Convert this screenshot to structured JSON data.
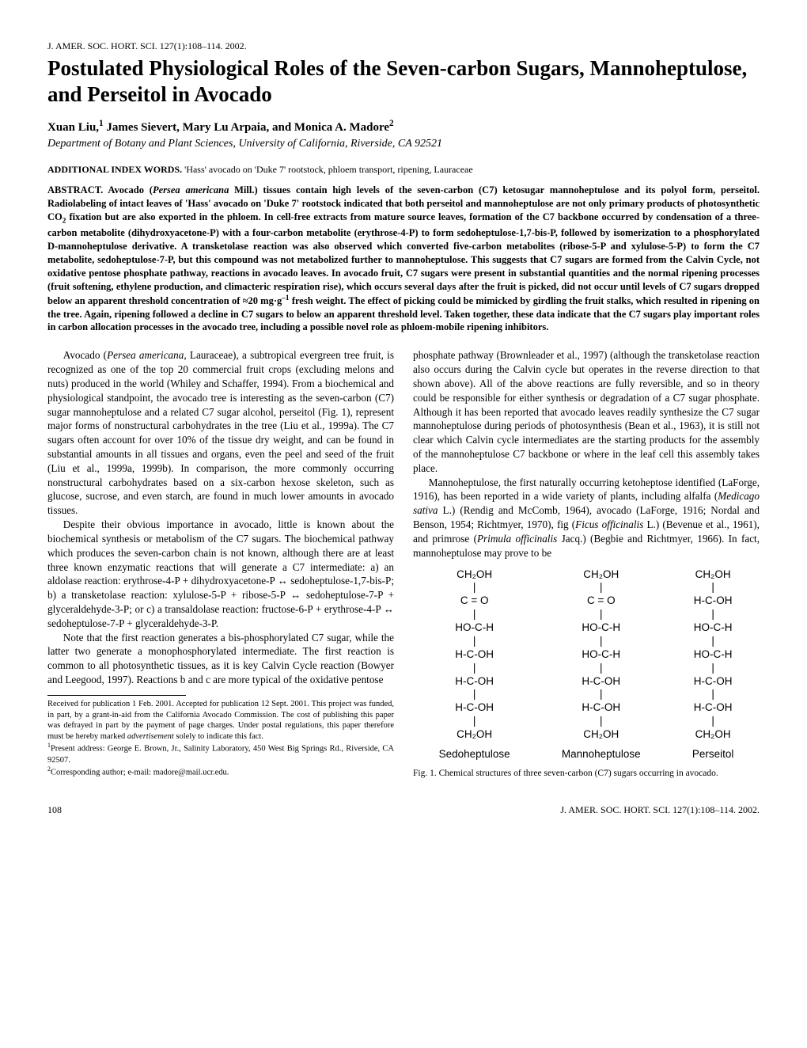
{
  "journal_line": "J. AMER. SOC. HORT. SCI. 127(1):108–114. 2002.",
  "title": "Postulated Physiological Roles of the Seven-carbon Sugars, Mannoheptulose, and Perseitol in Avocado",
  "authors_html": "Xuan Liu,<span class='sup'>1</span> James Sievert, Mary Lu Arpaia, and Monica A. Madore<span class='sup'>2</span>",
  "affiliation": "Department of Botany and Plant Sciences, University of California, Riverside, CA 92521",
  "index_words": {
    "label": "ADDITIONAL INDEX WORDS.",
    "text": " 'Hass' avocado on 'Duke 7' rootstock, phloem transport, ripening, Lauraceae"
  },
  "abstract_label": "ABSTRACT.",
  "abstract_html": " Avocado (<span class='italic'>Persea americana</span> Mill.) tissues contain high levels of the seven-carbon (C7) ketosugar mannoheptulose and its polyol form, perseitol. Radiolabeling of intact leaves of 'Hass' avocado on 'Duke 7' rootstock indicated that both perseitol and mannoheptulose are not only primary products of photosynthetic CO<span class='sub'>2</span> fixation but are also exported in the phloem. In cell-free extracts from mature source leaves, formation of the C7 backbone occurred by condensation of a three-carbon metabolite (dihydroxyacetone-P) with a four-carbon metabolite (erythrose-4-P) to form sedoheptulose-1,7-bis-P, followed by isomerization to a phosphorylated D-mannoheptulose derivative. A transketolase reaction was also observed which converted five-carbon metabolites (ribose-5-P and xylulose-5-P) to form the C7 metabolite, sedoheptulose-7-P, but this compound was not metabolized further to mannoheptulose. This suggests that C7 sugars are formed from the Calvin Cycle, not oxidative pentose phosphate pathway, reactions in avocado leaves. In avocado fruit, C7 sugars were present in substantial quantities and the normal ripening processes (fruit softening, ethylene production, and climacteric respiration rise), which occurs several days after the fruit is picked, did not occur until levels of C7 sugars dropped below an apparent threshold concentration of ≈20 mg·g<span class='sup'>–1</span> fresh weight. The effect of picking could be mimicked by girdling the fruit stalks, which resulted in ripening on the tree. Again, ripening followed a decline in C7 sugars to below an apparent threshold level. Taken together, these data indicate that the C7 sugars play important roles in carbon allocation processes in the avocado tree, including a possible novel role as phloem-mobile ripening inhibitors.",
  "left_col": [
    {
      "html": "Avocado (<span class='italic'>Persea americana,</span> Lauraceae), a subtropical evergreen tree fruit, is recognized as one of the top 20 commercial fruit crops (excluding melons and nuts) produced in the world (Whiley and Schaffer, 1994). From a biochemical and physiological standpoint, the avocado tree is interesting as the seven-carbon (C7) sugar mannoheptulose and a related C7 sugar alcohol, perseitol (Fig. 1), represent major forms of nonstructural carbohydrates in the tree (Liu et al., 1999a). The C7 sugars often account for over 10% of the tissue dry weight, and can be found in substantial amounts in all tissues and organs, even the peel and seed of the fruit (Liu et al., 1999a, 1999b). In comparison, the more commonly occurring nonstructural carbohydrates based on a six-carbon hexose skeleton, such as glucose, sucrose, and even starch, are found in much lower amounts in avocado tissues."
    },
    {
      "html": "Despite their obvious importance in avocado, little is known about the biochemical synthesis or metabolism of the C7 sugars. The biochemical pathway which produces the seven-carbon chain is not known, although there are at least three known enzymatic reactions that will generate a C7 intermediate: a) an aldolase reaction: erythrose-4-P + dihydroxyacetone-P ↔ sedoheptulose-1,7-bis-P; b) a transketolase reaction: xylulose-5-P + ribose-5-P ↔ sedoheptulose-7-P + glyceraldehyde-3-P; or c) a transaldolase reaction: fructose-6-P + erythrose-4-P ↔ sedoheptulose-7-P + glyceraldehyde-3-P."
    },
    {
      "html": "Note that the first reaction generates a bis-phosphorylated C7 sugar, while the latter two generate a monophosphorylated intermediate. The first reaction is common to all photosynthetic tissues, as it is key Calvin Cycle reaction (Bowyer and Leegood, 1997). Reactions b and c are more typical of the oxidative pentose"
    }
  ],
  "footnotes": [
    {
      "html": "Received for publication 1 Feb. 2001. Accepted for publication 12 Sept. 2001. This project was funded, in part, by a grant-in-aid from the California Avocado Commission. The cost of publishing this paper was defrayed in part by the payment of page charges. Under postal regulations, this paper therefore must be hereby marked <span class='italic'>advertisement</span> solely to indicate this fact."
    },
    {
      "html": "<span class='sup'>1</span>Present address: George E. Brown, Jr., Salinity Laboratory, 450 West Big Springs Rd., Riverside, CA 92507."
    },
    {
      "html": "<span class='sup'>2</span>Corresponding author; e-mail: madore@mail.ucr.edu."
    }
  ],
  "right_col": [
    {
      "html": "phosphate pathway (Brownleader et al., 1997) (although the transketolase reaction also occurs during the Calvin cycle but operates in the reverse direction to that shown above). All of the above reactions are fully reversible, and so in theory could be responsible for either synthesis or degradation of a C7 sugar phosphate. Although it has been reported that avocado leaves readily synthesize the C7 sugar mannoheptulose during periods of photosynthesis (Bean et al., 1963), it is still not clear which Calvin cycle intermediates are the starting products for the assembly of the mannoheptulose C7 backbone or where in the leaf cell this assembly takes place.",
      "noindent": true
    },
    {
      "html": "Mannoheptulose, the first naturally occurring ketoheptose identified (LaForge, 1916), has been reported in a wide variety of plants, including alfalfa (<span class='italic'>Medicago sativa</span> L.) (Rendig and McComb, 1964), avocado (LaForge, 1916; Nordal and Benson, 1954; Richtmyer, 1970), fig (<span class='italic'>Ficus officinalis</span> L.) (Bevenue et al., 1961), and primrose (<span class='italic'>Primula officinalis</span> Jacq.) (Begbie and Richtmyer, 1966). In fact, mannoheptulose may prove to be"
    }
  ],
  "figure": {
    "molecules": [
      {
        "name": "Sedoheptulose",
        "rows": [
          "CH₂OH",
          "|",
          "C = O",
          "|",
          "HO-C-H",
          "|",
          "H-C-OH",
          "|",
          "H-C-OH",
          "|",
          "H-C-OH",
          "|",
          "CH₂OH"
        ]
      },
      {
        "name": "Mannoheptulose",
        "rows": [
          "CH₂OH",
          "|",
          "C = O",
          "|",
          "HO-C-H",
          "|",
          "HO-C-H",
          "|",
          "H-C-OH",
          "|",
          "H-C-OH",
          "|",
          "CH₂OH"
        ]
      },
      {
        "name": "Perseitol",
        "rows": [
          "CH₂OH",
          "|",
          "H-C-OH",
          "|",
          "HO-C-H",
          "|",
          "HO-C-H",
          "|",
          "H-C-OH",
          "|",
          "H-C-OH",
          "|",
          "CH₂OH"
        ]
      }
    ],
    "caption": "Fig. 1. Chemical structures of three seven-carbon (C7) sugars occurring in avocado."
  },
  "footer": {
    "page": "108",
    "right": "J. AMER. SOC. HORT. SCI. 127(1):108–114. 2002."
  },
  "colors": {
    "text": "#000000",
    "background": "#ffffff"
  }
}
